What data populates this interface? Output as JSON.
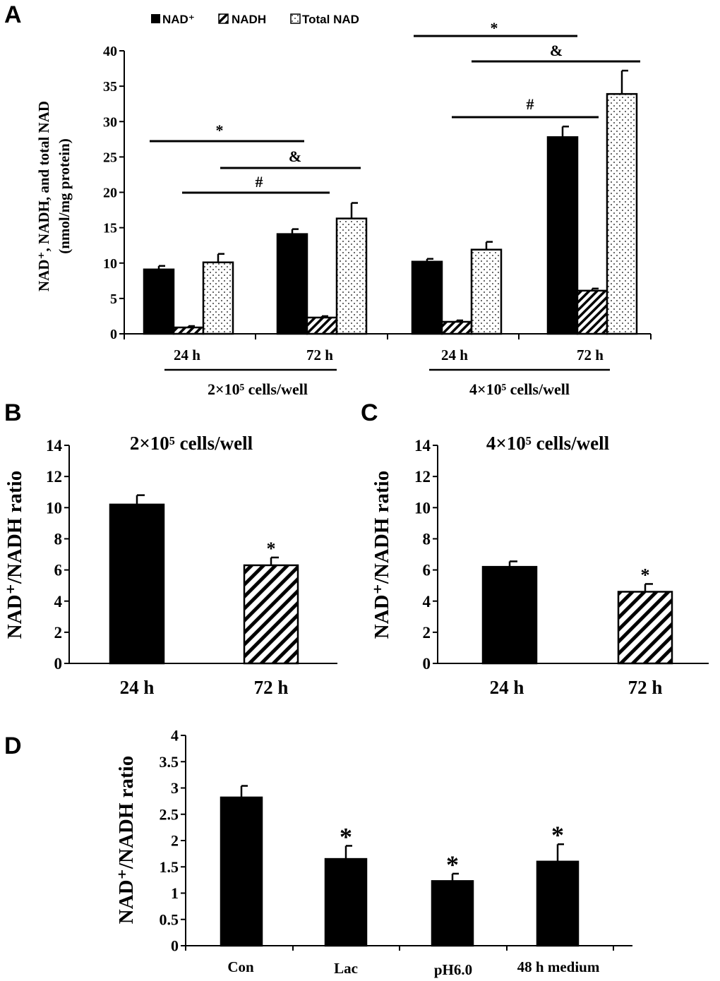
{
  "panels": {
    "a": "A",
    "b": "B",
    "c": "C",
    "d": "D"
  },
  "chart_data": [
    {
      "type": "bar",
      "panel": "A",
      "ylabel_line1": "NAD⁺, NADH, and total NAD",
      "ylabel_line2": "(nmol/mg protein)",
      "ylim": [
        0,
        40
      ],
      "yticks": [
        0,
        5,
        10,
        15,
        20,
        25,
        30,
        35,
        40
      ],
      "categories": [
        "24 h",
        "72 h",
        "24 h",
        "72 h"
      ],
      "groups": [
        "2×10⁵ cells/well",
        "4×10⁵ cells/well"
      ],
      "legend": [
        "NAD⁺",
        "NADH",
        "Total NAD"
      ],
      "series": [
        {
          "name": "NAD⁺",
          "values": [
            9.1,
            14.1,
            10.2,
            27.8
          ],
          "errors": [
            0.5,
            0.7,
            0.4,
            1.5
          ]
        },
        {
          "name": "NADH",
          "values": [
            0.9,
            2.3,
            1.7,
            6.1
          ],
          "errors": [
            0.2,
            0.2,
            0.2,
            0.3
          ]
        },
        {
          "name": "Total NAD",
          "values": [
            10.1,
            16.3,
            11.9,
            33.9
          ],
          "errors": [
            1.2,
            2.2,
            1.1,
            3.3
          ]
        }
      ],
      "annotations": [
        {
          "label": "*"
        },
        {
          "label": "&"
        },
        {
          "label": "#"
        },
        {
          "label": "*"
        },
        {
          "label": "&"
        },
        {
          "label": "#"
        }
      ]
    },
    {
      "type": "bar",
      "panel": "B",
      "title": "2×10⁵ cells/well",
      "ylabel": "NAD⁺/NADH ratio",
      "ylim": [
        0,
        14
      ],
      "yticks": [
        0,
        2,
        4,
        6,
        8,
        10,
        12,
        14
      ],
      "categories": [
        "24 h",
        "72 h"
      ],
      "values": [
        10.2,
        6.3
      ],
      "errors": [
        0.6,
        0.5
      ],
      "sig": [
        "",
        "*"
      ]
    },
    {
      "type": "bar",
      "panel": "C",
      "title": "4×10⁵ cells/well",
      "ylabel": "NAD⁺/NADH ratio",
      "ylim": [
        0,
        14
      ],
      "yticks": [
        0,
        2,
        4,
        6,
        8,
        10,
        12,
        14
      ],
      "categories": [
        "24 h",
        "72 h"
      ],
      "values": [
        6.2,
        4.6
      ],
      "errors": [
        0.35,
        0.5
      ],
      "sig": [
        "",
        "*"
      ]
    },
    {
      "type": "bar",
      "panel": "D",
      "ylabel": "NAD⁺/NADH ratio",
      "ylim": [
        0,
        4
      ],
      "yticks": [
        "0",
        "0.5",
        "1",
        "1.5",
        "2",
        "2.5",
        "3",
        "3.5",
        "4"
      ],
      "categories": [
        "Con",
        "Lac",
        "pH6.0",
        "48 h medium"
      ],
      "values": [
        2.82,
        1.65,
        1.23,
        1.6
      ],
      "errors": [
        0.22,
        0.25,
        0.14,
        0.33
      ],
      "sig": [
        "",
        "*",
        "*",
        "*"
      ]
    }
  ]
}
